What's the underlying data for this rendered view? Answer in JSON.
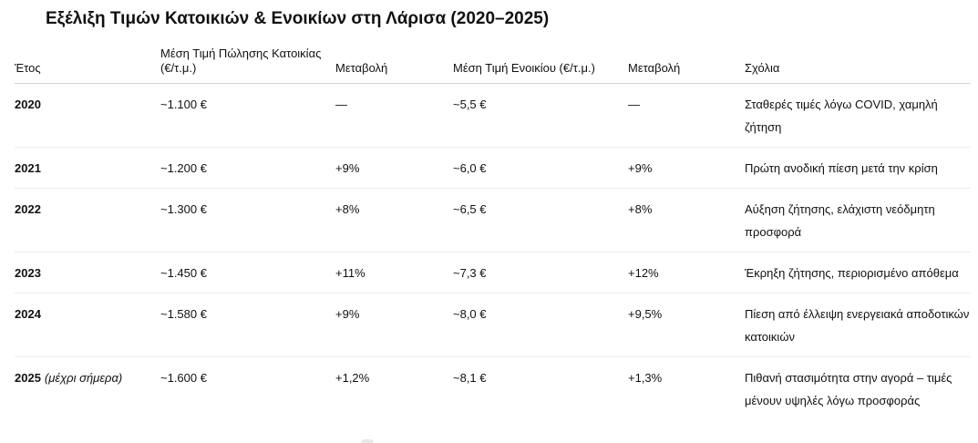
{
  "title": "Εξέλιξη Τιμών Κατοικιών & Ενοικίων στη Λάρισα (2020–2025)",
  "table": {
    "headers": [
      "Έτος",
      "Μέση Τιμή Πώλησης Κατοικίας (€/τ.μ.)",
      "Μεταβολή",
      "Μέση Τιμή Ενοικίου (€/τ.μ.)",
      "Μεταβολή",
      "Σχόλια"
    ],
    "rows": [
      {
        "year": "2020",
        "year_note": "",
        "sale_price": "~1.100 €",
        "sale_change": "—",
        "rent_price": "~5,5 €",
        "rent_change": "—",
        "comment": "Σταθερές τιμές λόγω COVID, χαμηλή ζήτηση"
      },
      {
        "year": "2021",
        "year_note": "",
        "sale_price": "~1.200 €",
        "sale_change": "+9%",
        "rent_price": "~6,0 €",
        "rent_change": "+9%",
        "comment": "Πρώτη ανοδική πίεση μετά την κρίση"
      },
      {
        "year": "2022",
        "year_note": "",
        "sale_price": "~1.300 €",
        "sale_change": "+8%",
        "rent_price": "~6,5 €",
        "rent_change": "+8%",
        "comment": "Αύξηση ζήτησης, ελάχιστη νεόδμητη προσφορά"
      },
      {
        "year": "2023",
        "year_note": "",
        "sale_price": "~1.450 €",
        "sale_change": "+11%",
        "rent_price": "~7,3 €",
        "rent_change": "+12%",
        "comment": "Έκρηξη ζήτησης, περιορισμένο απόθεμα"
      },
      {
        "year": "2024",
        "year_note": "",
        "sale_price": "~1.580 €",
        "sale_change": "+9%",
        "rent_price": "~8,0 €",
        "rent_change": "+9,5%",
        "comment": "Πίεση από έλλειψη ενεργειακά αποδοτικών κατοικιών"
      },
      {
        "year": "2025",
        "year_note": "(μέχρι σήμερα)",
        "sale_price": "~1.600 €",
        "sale_change": "+1,2%",
        "rent_price": "~8,1 €",
        "rent_change": "+1,3%",
        "comment": "Πιθανή στασιμότητα στην αγορά – τιμές μένουν υψηλές λόγω προσφοράς"
      }
    ]
  }
}
